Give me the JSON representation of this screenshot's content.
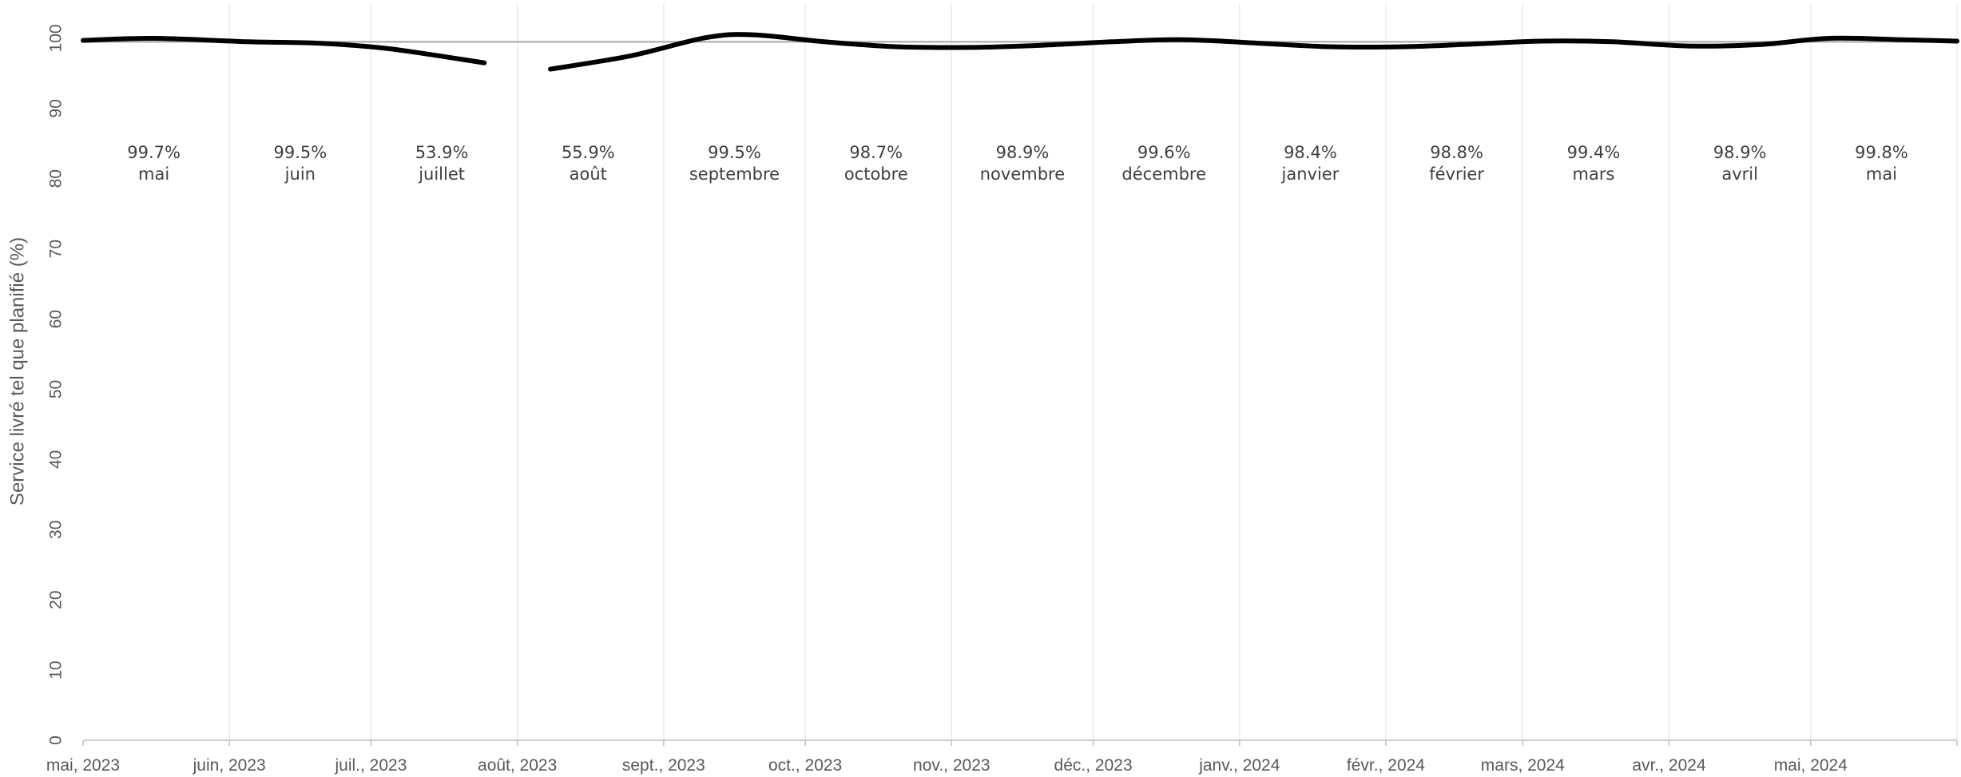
{
  "chart_data": {
    "type": "line",
    "title": "",
    "xlabel": "",
    "ylabel": "Service livré tel que planifié (%)",
    "ylim": [
      0,
      105
    ],
    "yticks": [
      0,
      10,
      20,
      30,
      40,
      50,
      60,
      70,
      80,
      90,
      100
    ],
    "x_tick_labels": [
      "mai, 2023",
      "juin, 2023",
      "juil., 2023",
      "août, 2023",
      "sept., 2023",
      "oct., 2023",
      "nov., 2023",
      "déc., 2023",
      "janv., 2024",
      "févr., 2024",
      "mars, 2024",
      "avr., 2024",
      "mai, 2024"
    ],
    "grid": "vertical",
    "reference_line": 99.5,
    "series": [
      {
        "points": [
          {
            "x": "2023-05-01",
            "y": 99.7
          },
          {
            "x": "2023-05-16",
            "y": 100.0
          },
          {
            "x": "2023-06-05",
            "y": 99.5
          },
          {
            "x": "2023-06-20",
            "y": 99.3
          },
          {
            "x": "2023-07-05",
            "y": 98.5
          },
          {
            "x": "2023-07-25",
            "y": 96.5
          },
          null,
          {
            "x": "2023-08-08",
            "y": 95.6
          },
          {
            "x": "2023-08-25",
            "y": 97.5
          },
          {
            "x": "2023-09-10",
            "y": 100.1
          },
          {
            "x": "2023-09-20",
            "y": 100.5
          },
          {
            "x": "2023-10-05",
            "y": 99.5
          },
          {
            "x": "2023-10-20",
            "y": 98.8
          },
          {
            "x": "2023-11-05",
            "y": 98.7
          },
          {
            "x": "2023-11-20",
            "y": 99.0
          },
          {
            "x": "2023-12-05",
            "y": 99.5
          },
          {
            "x": "2023-12-20",
            "y": 99.8
          },
          {
            "x": "2024-01-05",
            "y": 99.3
          },
          {
            "x": "2024-01-20",
            "y": 98.8
          },
          {
            "x": "2024-02-05",
            "y": 98.8
          },
          {
            "x": "2024-02-20",
            "y": 99.2
          },
          {
            "x": "2024-03-05",
            "y": 99.6
          },
          {
            "x": "2024-03-20",
            "y": 99.5
          },
          {
            "x": "2024-04-05",
            "y": 98.9
          },
          {
            "x": "2024-04-20",
            "y": 99.1
          },
          {
            "x": "2024-05-05",
            "y": 100.0
          },
          {
            "x": "2024-05-20",
            "y": 99.8
          },
          {
            "x": "2024-06-01",
            "y": 99.6
          }
        ]
      }
    ],
    "monthly_labels": [
      {
        "x": "2023-05-16",
        "value": "99.7%",
        "month": "mai"
      },
      {
        "x": "2023-06-16",
        "value": "99.5%",
        "month": "juin"
      },
      {
        "x": "2023-07-16",
        "value": "53.9%",
        "month": "juillet"
      },
      {
        "x": "2023-08-16",
        "value": "55.9%",
        "month": "août"
      },
      {
        "x": "2023-09-16",
        "value": "99.5%",
        "month": "septembre"
      },
      {
        "x": "2023-10-16",
        "value": "98.7%",
        "month": "octobre"
      },
      {
        "x": "2023-11-16",
        "value": "98.9%",
        "month": "novembre"
      },
      {
        "x": "2023-12-16",
        "value": "99.6%",
        "month": "décembre"
      },
      {
        "x": "2024-01-16",
        "value": "98.4%",
        "month": "janvier"
      },
      {
        "x": "2024-02-16",
        "value": "98.8%",
        "month": "février"
      },
      {
        "x": "2024-03-16",
        "value": "99.4%",
        "month": "mars"
      },
      {
        "x": "2024-04-16",
        "value": "98.9%",
        "month": "avril"
      },
      {
        "x": "2024-05-16",
        "value": "99.8%",
        "month": "mai"
      }
    ],
    "data_label_y": 82,
    "colors": {
      "line": "#000000",
      "reference": "#a6a6a6",
      "grid": "#e8e8e8",
      "axis": "#bfbfbf",
      "text": "#595959"
    }
  }
}
